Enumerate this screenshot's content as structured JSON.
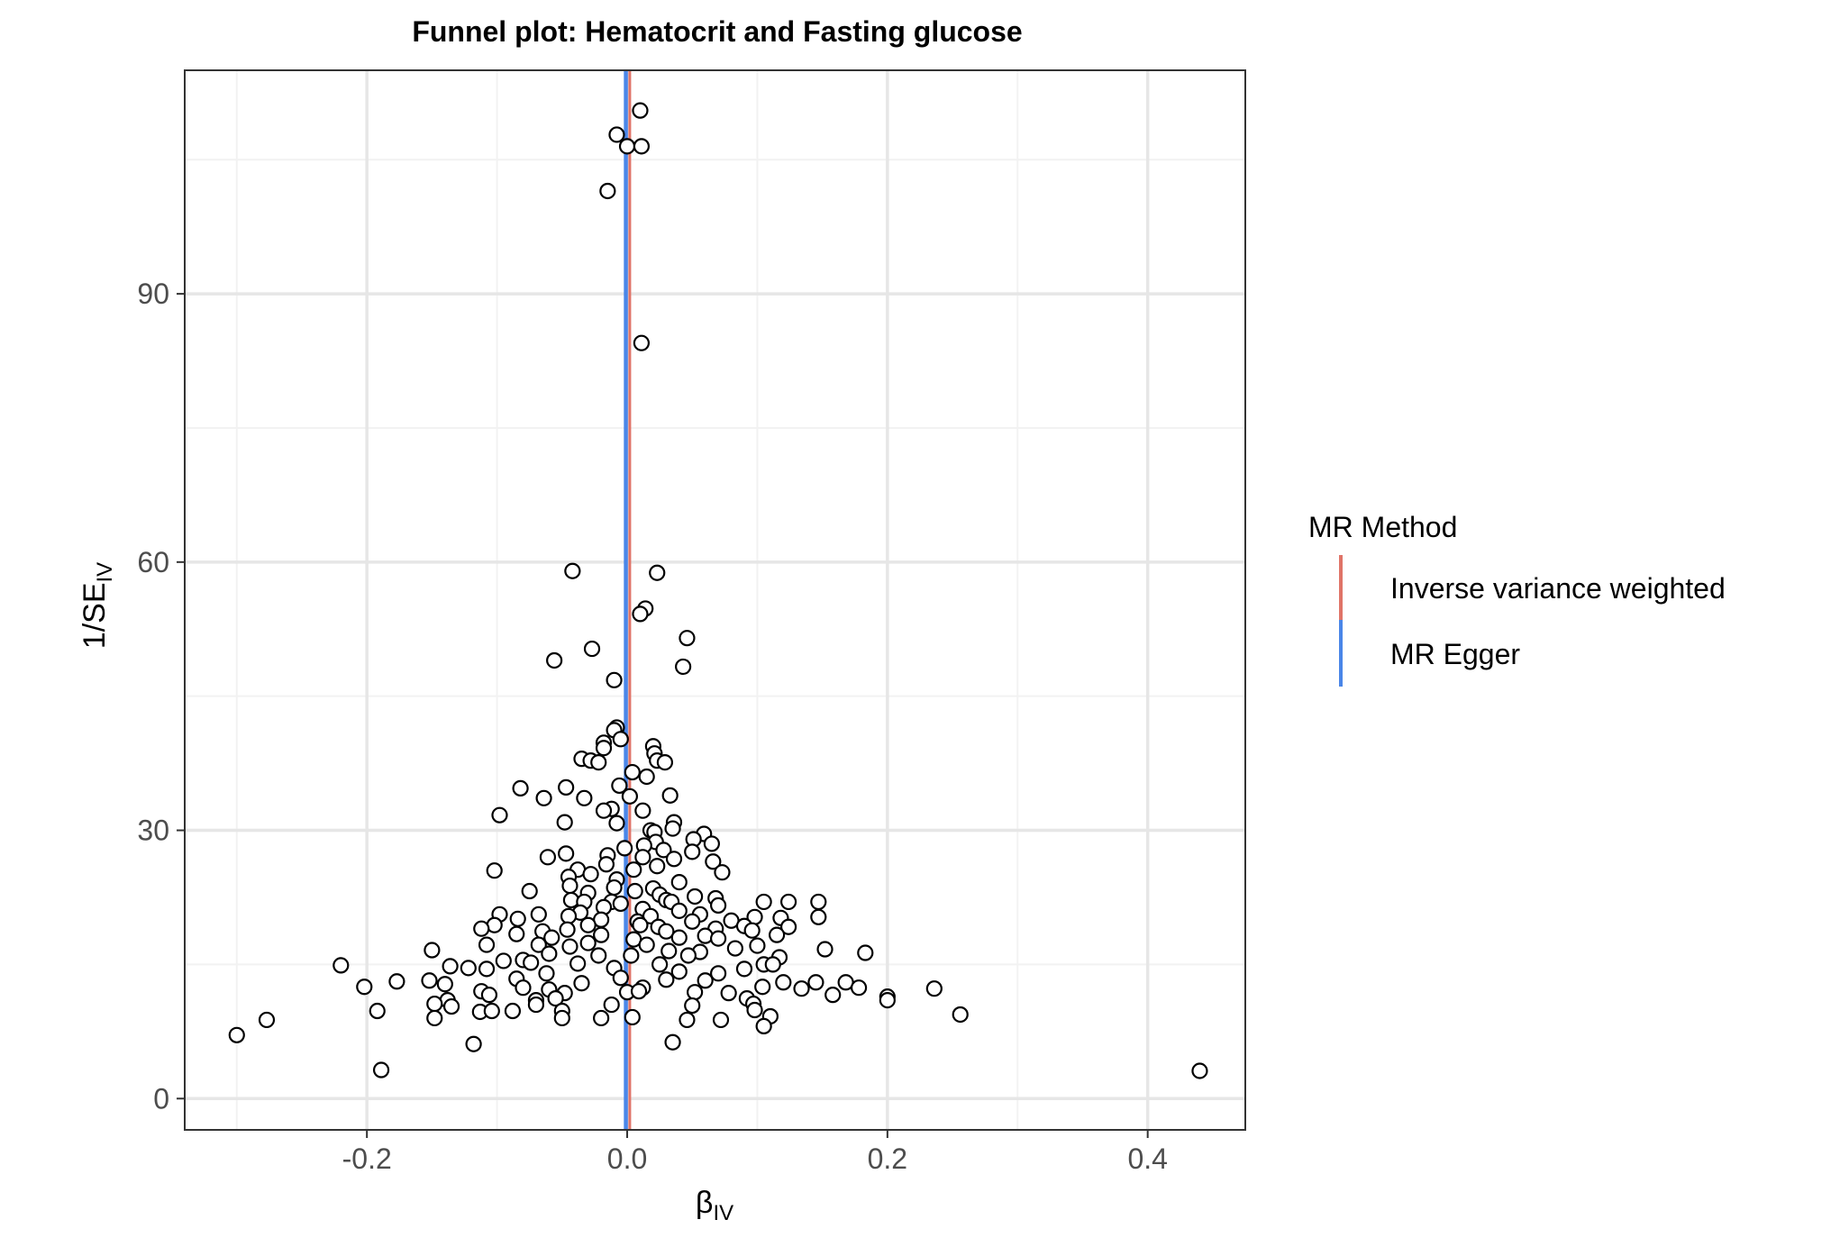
{
  "chart_data": {
    "type": "scatter",
    "title": "Funnel plot: Hematocrit and Fasting glucose",
    "xlabel": "β",
    "xlabel_sub": "IV",
    "ylabel": "1/SE",
    "ylabel_sub": "IV",
    "xlim": [
      -0.34,
      0.475
    ],
    "ylim": [
      -3.5,
      115
    ],
    "x_ticks": [
      -0.2,
      0.0,
      0.2,
      0.4
    ],
    "x_tick_labels": [
      "-0.2",
      "0.0",
      "0.2",
      "0.4"
    ],
    "y_ticks": [
      0,
      30,
      60,
      90
    ],
    "y_tick_labels": [
      "0",
      "30",
      "60",
      "90"
    ],
    "grid": true,
    "colors": {
      "ivw": "#e07468",
      "egger": "#4a86e8",
      "point_fill": "#ffffff",
      "point_stroke": "#000000",
      "grid_major": "#e6e6e6",
      "grid_minor": "#f2f2f2",
      "panel_border": "#333333"
    },
    "reference_lines": [
      {
        "method": "Inverse variance weighted",
        "x": 0.002,
        "color": "#e07468"
      },
      {
        "method": "MR Egger",
        "x": -0.001,
        "color": "#4a86e8"
      }
    ],
    "legend": {
      "title": "MR Method",
      "position": "right",
      "items": [
        {
          "label": "Inverse variance weighted",
          "color": "#e07468"
        },
        {
          "label": "MR Egger",
          "color": "#4a86e8"
        }
      ]
    },
    "points": [
      [
        0.01,
        110.5
      ],
      [
        -0.008,
        107.8
      ],
      [
        0.0,
        106.5
      ],
      [
        0.011,
        106.5
      ],
      [
        -0.015,
        101.5
      ],
      [
        0.011,
        84.5
      ],
      [
        -0.042,
        59.0
      ],
      [
        0.023,
        58.8
      ],
      [
        0.014,
        54.8
      ],
      [
        0.01,
        54.2
      ],
      [
        0.046,
        51.5
      ],
      [
        -0.027,
        50.3
      ],
      [
        -0.056,
        49.0
      ],
      [
        -0.01,
        46.8
      ],
      [
        0.043,
        48.3
      ],
      [
        -0.008,
        41.5
      ],
      [
        -0.01,
        41.2
      ],
      [
        -0.005,
        40.2
      ],
      [
        -0.018,
        39.8
      ],
      [
        -0.018,
        39.2
      ],
      [
        0.02,
        39.4
      ],
      [
        0.021,
        38.6
      ],
      [
        0.023,
        37.8
      ],
      [
        0.029,
        37.6
      ],
      [
        -0.035,
        38.0
      ],
      [
        -0.028,
        37.8
      ],
      [
        -0.022,
        37.6
      ],
      [
        0.004,
        36.5
      ],
      [
        0.015,
        36.0
      ],
      [
        -0.006,
        35.0
      ],
      [
        -0.047,
        34.8
      ],
      [
        -0.082,
        34.7
      ],
      [
        -0.064,
        33.6
      ],
      [
        -0.033,
        33.6
      ],
      [
        0.002,
        33.8
      ],
      [
        0.033,
        33.9
      ],
      [
        -0.012,
        32.4
      ],
      [
        -0.018,
        32.2
      ],
      [
        0.012,
        32.2
      ],
      [
        -0.098,
        31.7
      ],
      [
        -0.048,
        30.9
      ],
      [
        -0.008,
        30.8
      ],
      [
        0.036,
        30.9
      ],
      [
        0.035,
        30.2
      ],
      [
        0.018,
        30.0
      ],
      [
        0.021,
        29.8
      ],
      [
        0.059,
        29.6
      ],
      [
        0.051,
        29.0
      ],
      [
        0.065,
        28.5
      ],
      [
        0.022,
        28.7
      ],
      [
        0.013,
        28.3
      ],
      [
        -0.002,
        28.0
      ],
      [
        0.028,
        27.8
      ],
      [
        0.05,
        27.6
      ],
      [
        -0.047,
        27.4
      ],
      [
        -0.061,
        27.0
      ],
      [
        -0.015,
        27.2
      ],
      [
        0.012,
        27.0
      ],
      [
        0.036,
        26.8
      ],
      [
        0.066,
        26.5
      ],
      [
        -0.016,
        26.2
      ],
      [
        0.023,
        26.0
      ],
      [
        -0.102,
        25.5
      ],
      [
        -0.038,
        25.6
      ],
      [
        0.005,
        25.6
      ],
      [
        0.073,
        25.3
      ],
      [
        -0.028,
        25.1
      ],
      [
        -0.045,
        24.8
      ],
      [
        -0.008,
        24.5
      ],
      [
        0.04,
        24.2
      ],
      [
        -0.044,
        23.8
      ],
      [
        -0.01,
        23.6
      ],
      [
        0.02,
        23.5
      ],
      [
        0.006,
        23.2
      ],
      [
        -0.075,
        23.2
      ],
      [
        -0.03,
        23.0
      ],
      [
        0.025,
        22.8
      ],
      [
        0.052,
        22.6
      ],
      [
        0.068,
        22.4
      ],
      [
        0.03,
        22.2
      ],
      [
        -0.043,
        22.2
      ],
      [
        -0.033,
        22.0
      ],
      [
        -0.012,
        22.0
      ],
      [
        0.034,
        22.0
      ],
      [
        0.105,
        22.0
      ],
      [
        0.124,
        22.0
      ],
      [
        0.147,
        22.0
      ],
      [
        -0.005,
        21.8
      ],
      [
        0.07,
        21.6
      ],
      [
        -0.018,
        21.4
      ],
      [
        0.012,
        21.2
      ],
      [
        0.04,
        21.0
      ],
      [
        -0.098,
        20.6
      ],
      [
        -0.068,
        20.6
      ],
      [
        -0.036,
        20.8
      ],
      [
        0.056,
        20.6
      ],
      [
        -0.045,
        20.4
      ],
      [
        0.018,
        20.4
      ],
      [
        -0.084,
        20.1
      ],
      [
        0.098,
        20.3
      ],
      [
        0.118,
        20.2
      ],
      [
        0.147,
        20.3
      ],
      [
        -0.02,
        20.0
      ],
      [
        0.008,
        19.8
      ],
      [
        0.05,
        19.8
      ],
      [
        0.08,
        19.9
      ],
      [
        -0.102,
        19.4
      ],
      [
        -0.112,
        19.0
      ],
      [
        -0.03,
        19.4
      ],
      [
        0.01,
        19.4
      ],
      [
        0.024,
        19.2
      ],
      [
        0.09,
        19.3
      ],
      [
        0.124,
        19.2
      ],
      [
        0.068,
        19.0
      ],
      [
        -0.046,
        18.9
      ],
      [
        -0.065,
        18.7
      ],
      [
        0.03,
        18.7
      ],
      [
        0.096,
        18.8
      ],
      [
        -0.085,
        18.4
      ],
      [
        -0.02,
        18.3
      ],
      [
        0.06,
        18.2
      ],
      [
        0.115,
        18.3
      ],
      [
        -0.058,
        18.0
      ],
      [
        0.005,
        17.8
      ],
      [
        0.04,
        18.0
      ],
      [
        0.07,
        17.9
      ],
      [
        -0.03,
        17.4
      ],
      [
        -0.068,
        17.2
      ],
      [
        -0.108,
        17.2
      ],
      [
        0.015,
        17.2
      ],
      [
        0.1,
        17.1
      ],
      [
        -0.044,
        17.0
      ],
      [
        0.083,
        16.8
      ],
      [
        0.152,
        16.7
      ],
      [
        -0.15,
        16.6
      ],
      [
        0.032,
        16.5
      ],
      [
        0.056,
        16.4
      ],
      [
        0.183,
        16.3
      ],
      [
        -0.06,
        16.2
      ],
      [
        -0.022,
        16.0
      ],
      [
        0.003,
        16.0
      ],
      [
        0.047,
        16.0
      ],
      [
        0.117,
        15.8
      ],
      [
        -0.08,
        15.5
      ],
      [
        -0.095,
        15.4
      ],
      [
        -0.074,
        15.2
      ],
      [
        -0.038,
        15.1
      ],
      [
        0.025,
        15.0
      ],
      [
        0.105,
        15.0
      ],
      [
        0.112,
        15.0
      ],
      [
        -0.22,
        14.9
      ],
      [
        -0.136,
        14.8
      ],
      [
        -0.122,
        14.6
      ],
      [
        -0.108,
        14.5
      ],
      [
        -0.01,
        14.6
      ],
      [
        0.09,
        14.5
      ],
      [
        0.04,
        14.2
      ],
      [
        -0.062,
        14.0
      ],
      [
        0.07,
        14.0
      ],
      [
        -0.085,
        13.4
      ],
      [
        -0.005,
        13.5
      ],
      [
        0.03,
        13.3
      ],
      [
        0.06,
        13.2
      ],
      [
        -0.177,
        13.1
      ],
      [
        -0.152,
        13.2
      ],
      [
        -0.14,
        12.8
      ],
      [
        -0.035,
        12.9
      ],
      [
        0.12,
        13.0
      ],
      [
        0.145,
        13.0
      ],
      [
        0.168,
        13.0
      ],
      [
        -0.202,
        12.5
      ],
      [
        -0.08,
        12.4
      ],
      [
        -0.06,
        12.2
      ],
      [
        0.012,
        12.4
      ],
      [
        0.104,
        12.5
      ],
      [
        0.134,
        12.3
      ],
      [
        0.236,
        12.3
      ],
      [
        0.178,
        12.4
      ],
      [
        -0.112,
        12.0
      ],
      [
        -0.048,
        11.8
      ],
      [
        0.0,
        11.9
      ],
      [
        0.009,
        12.0
      ],
      [
        0.052,
        11.9
      ],
      [
        0.078,
        11.8
      ],
      [
        -0.106,
        11.6
      ],
      [
        0.2,
        11.4
      ],
      [
        0.158,
        11.6
      ],
      [
        -0.055,
        11.2
      ],
      [
        -0.07,
        11.0
      ],
      [
        -0.138,
        11.0
      ],
      [
        0.2,
        11.0
      ],
      [
        0.092,
        11.2
      ],
      [
        -0.148,
        10.6
      ],
      [
        -0.07,
        10.5
      ],
      [
        -0.012,
        10.5
      ],
      [
        0.05,
        10.4
      ],
      [
        0.097,
        10.6
      ],
      [
        -0.135,
        10.3
      ],
      [
        -0.192,
        9.8
      ],
      [
        -0.113,
        9.7
      ],
      [
        -0.104,
        9.8
      ],
      [
        -0.088,
        9.8
      ],
      [
        -0.05,
        9.8
      ],
      [
        0.098,
        9.9
      ],
      [
        0.11,
        9.2
      ],
      [
        0.256,
        9.4
      ],
      [
        -0.148,
        9.0
      ],
      [
        -0.05,
        9.0
      ],
      [
        -0.02,
        9.0
      ],
      [
        0.004,
        9.1
      ],
      [
        0.072,
        8.8
      ],
      [
        0.046,
        8.8
      ],
      [
        -0.3,
        7.1
      ],
      [
        -0.277,
        8.8
      ],
      [
        0.105,
        8.1
      ],
      [
        -0.118,
        6.1
      ],
      [
        0.035,
        6.3
      ],
      [
        -0.189,
        3.2
      ],
      [
        0.44,
        3.1
      ]
    ]
  }
}
